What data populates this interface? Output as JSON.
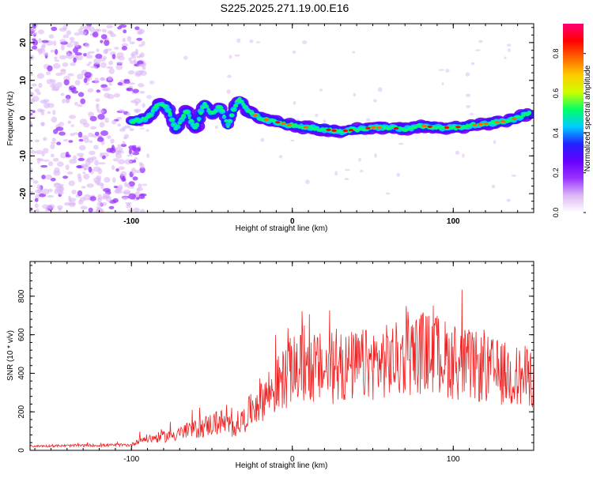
{
  "chart_data": [
    {
      "type": "heatmap",
      "title": "S225.2025.271.19.00.E16",
      "xlabel": "Height of straight line (km)",
      "ylabel": "Frequency (Hz)",
      "xlim": [
        -163,
        150
      ],
      "ylim": [
        -25,
        25
      ],
      "xticks": [
        -100,
        0,
        100
      ],
      "yticks": [
        -20,
        -10,
        0,
        10,
        20
      ],
      "xtick_labels": [
        "-100",
        "0",
        "100"
      ],
      "ytick_labels": [
        "-20",
        "-10",
        "0",
        "10",
        "20"
      ],
      "ridge": {
        "x": [
          -100,
          -90,
          -83,
          -78,
          -72,
          -66,
          -60,
          -55,
          -50,
          -45,
          -40,
          -36,
          -33,
          -28,
          -20,
          -10,
          0,
          10,
          20,
          30,
          40,
          50,
          60,
          70,
          80,
          90,
          100,
          110,
          120,
          130,
          140,
          148
        ],
        "y": [
          -1,
          0,
          4,
          3,
          -3,
          2,
          -3,
          4,
          1,
          3,
          -2,
          3,
          5,
          2,
          0,
          -1,
          -2,
          -2.5,
          -3,
          -3.5,
          -3,
          -2.5,
          -2.5,
          -3,
          -2,
          -2.5,
          -2.5,
          -2,
          -1.5,
          -1,
          0,
          1.5
        ]
      },
      "colorbar": {
        "label": "Normalized spectral amplitude",
        "ticks": [
          0,
          0.2,
          0.4,
          0.6,
          0.8
        ],
        "tick_labels": [
          "0.0",
          "0.2",
          "0.4",
          "0.6",
          "0.8"
        ],
        "range": [
          0,
          0.95
        ],
        "colormap": [
          "#ffffff",
          "#dcb8f5",
          "#9933ff",
          "#6600ff",
          "#2222ff",
          "#00ccff",
          "#00ff66",
          "#ccff00",
          "#ffcc00",
          "#ff6600",
          "#ff0000",
          "#ff0077"
        ]
      }
    },
    {
      "type": "line",
      "xlabel": "Height of straight line (km)",
      "ylabel": "SNR (10 * v/v)",
      "xlim": [
        -163,
        150
      ],
      "ylim": [
        0,
        980
      ],
      "xticks": [
        -100,
        0,
        100
      ],
      "yticks": [
        0,
        200,
        400,
        600,
        800
      ],
      "xtick_labels": [
        "-100",
        "0",
        "100"
      ],
      "ytick_labels": [
        "0",
        "200",
        "400",
        "600",
        "800"
      ],
      "series_color": "#ee2222",
      "envelope": {
        "x": [
          -163,
          -100,
          -95,
          -80,
          -60,
          -45,
          -38,
          -30,
          -22,
          -10,
          0,
          10,
          20,
          35,
          50,
          65,
          80,
          90,
          100,
          110,
          120,
          130,
          140,
          150
        ],
        "y": [
          22,
          28,
          55,
          70,
          110,
          150,
          120,
          160,
          250,
          330,
          420,
          430,
          420,
          430,
          450,
          470,
          510,
          500,
          460,
          440,
          420,
          400,
          380,
          380
        ],
        "spread": [
          6,
          8,
          20,
          30,
          50,
          70,
          60,
          70,
          110,
          150,
          180,
          190,
          190,
          190,
          190,
          200,
          220,
          210,
          200,
          190,
          180,
          170,
          170,
          160
        ]
      }
    }
  ]
}
